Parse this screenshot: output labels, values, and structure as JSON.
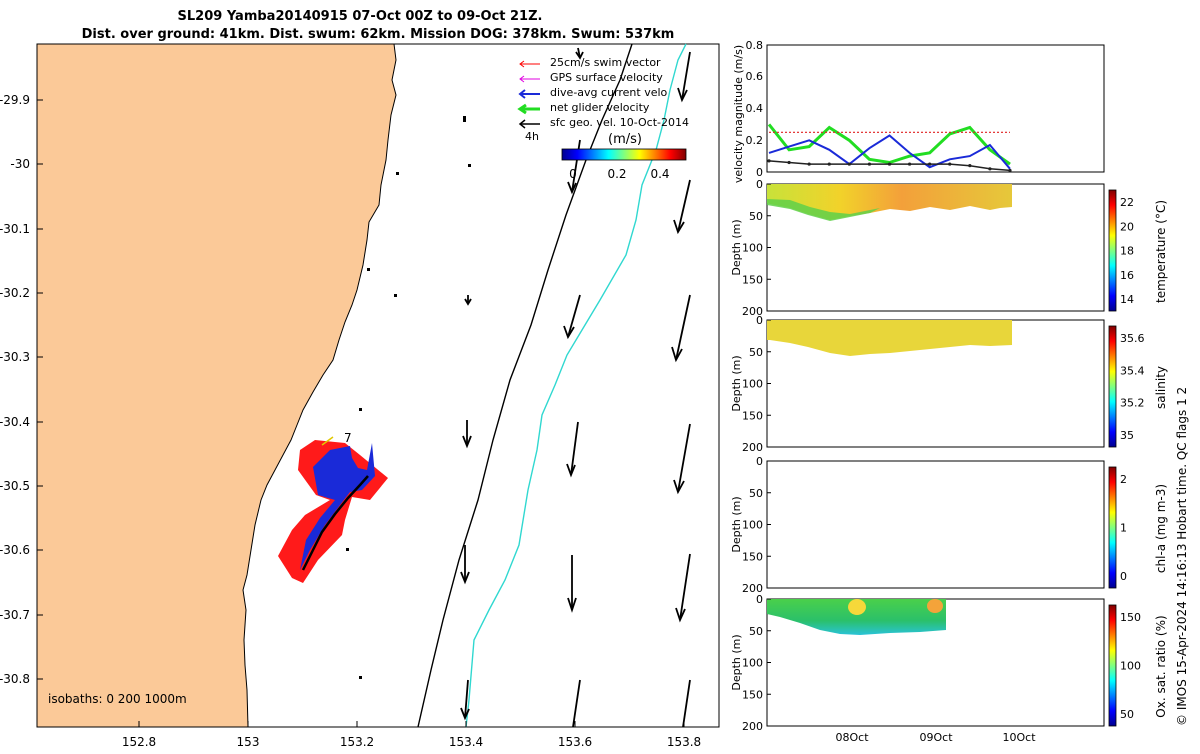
{
  "title": {
    "line1": "SL209 Yamba20140915 07-Oct 00Z to 09-Oct 21Z.",
    "line2": "Dist. over ground: 41km. Dist. swum: 62km. Mission DOG: 378km. Swum: 537km"
  },
  "map": {
    "y_ticks": [
      "-29.9",
      "-30",
      "-30.1",
      "-30.2",
      "-30.3",
      "-30.4",
      "-30.5",
      "-30.6",
      "-30.7",
      "-30.8"
    ],
    "x_ticks": [
      "152.8",
      "153",
      "153.2",
      "153.4",
      "153.6",
      "153.8"
    ],
    "legend": [
      "25cm/s swim vector",
      "GPS surface velocity",
      "dive-avg current velo",
      "net glider velocity",
      "sfc geo. vel. 10-Oct-2014"
    ],
    "legend_side_label": "4h",
    "colorbar_title": "(m/s)",
    "colorbar_ticks": [
      "0",
      "0.2",
      "0.4"
    ],
    "isobaths": "isobaths: 0   200  1000m",
    "track_marker": "7",
    "land_color": "#fbc998"
  },
  "velocity_panel": {
    "ylabel": "velocity magnitude (m/s)",
    "y_ticks": [
      "0",
      "0.2",
      "0.4",
      "0.6",
      "0.8"
    ]
  },
  "depth_panels": [
    {
      "ylabel": "Depth (m)",
      "y_ticks": [
        "0",
        "50",
        "100",
        "150",
        "200"
      ],
      "cbar_label": "temperature (°C)",
      "cbar_ticks": [
        "22",
        "20",
        "18",
        "16",
        "14"
      ]
    },
    {
      "ylabel": "Depth (m)",
      "y_ticks": [
        "0",
        "50",
        "100",
        "150",
        "200"
      ],
      "cbar_label": "salinity",
      "cbar_ticks": [
        "35.6",
        "35.4",
        "35.2",
        "35"
      ]
    },
    {
      "ylabel": "Depth (m)",
      "y_ticks": [
        "0",
        "50",
        "100",
        "150",
        "200"
      ],
      "cbar_label": "chl-a (mg m-3)",
      "cbar_ticks": [
        "2",
        "1",
        "0"
      ]
    },
    {
      "ylabel": "Depth (m)",
      "y_ticks": [
        "0",
        "50",
        "100",
        "150",
        "200"
      ],
      "cbar_label": "Ox. sat. ratio (%)",
      "cbar_ticks": [
        "150",
        "100",
        "50"
      ]
    }
  ],
  "time_ticks": [
    "08Oct",
    "09Oct",
    "10Oct"
  ],
  "footer": "© IMOS 15-Apr-2024 14:16:13 Hobart time. QC flags 1  2",
  "chart_data": {
    "type": "line",
    "title": "",
    "xlabel": "",
    "ylabel": "velocity magnitude (m/s)",
    "ylim": [
      0,
      0.8
    ],
    "x": [
      "07-Oct 00Z",
      "07-Oct 06Z",
      "07-Oct 12Z",
      "07-Oct 18Z",
      "08-Oct 00Z",
      "08-Oct 06Z",
      "08-Oct 12Z",
      "08-Oct 18Z",
      "09-Oct 00Z",
      "09-Oct 06Z",
      "09-Oct 12Z",
      "09-Oct 18Z",
      "09-Oct 21Z"
    ],
    "series": [
      {
        "name": "net glider velocity",
        "values": [
          0.3,
          0.14,
          0.16,
          0.28,
          0.2,
          0.08,
          0.06,
          0.1,
          0.12,
          0.24,
          0.28,
          0.14,
          0.05
        ]
      },
      {
        "name": "dive-avg current velo",
        "values": [
          0.12,
          0.16,
          0.2,
          0.14,
          0.05,
          0.15,
          0.23,
          0.12,
          0.03,
          0.08,
          0.1,
          0.17,
          0.02
        ]
      },
      {
        "name": "25cm/s swim vector",
        "values": [
          0.25,
          0.25,
          0.25,
          0.25,
          0.25,
          0.25,
          0.25,
          0.25,
          0.25,
          0.25,
          0.25,
          0.25,
          0.25
        ]
      },
      {
        "name": "sfc geo. vel. 10-Oct-2014",
        "values": [
          0.07,
          0.06,
          0.05,
          0.05,
          0.05,
          0.05,
          0.05,
          0.05,
          0.05,
          0.05,
          0.04,
          0.02,
          0.01
        ]
      }
    ],
    "series_colors": [
      "#22dd22",
      "#1a2ad8",
      "#e02020",
      "#222222"
    ]
  }
}
